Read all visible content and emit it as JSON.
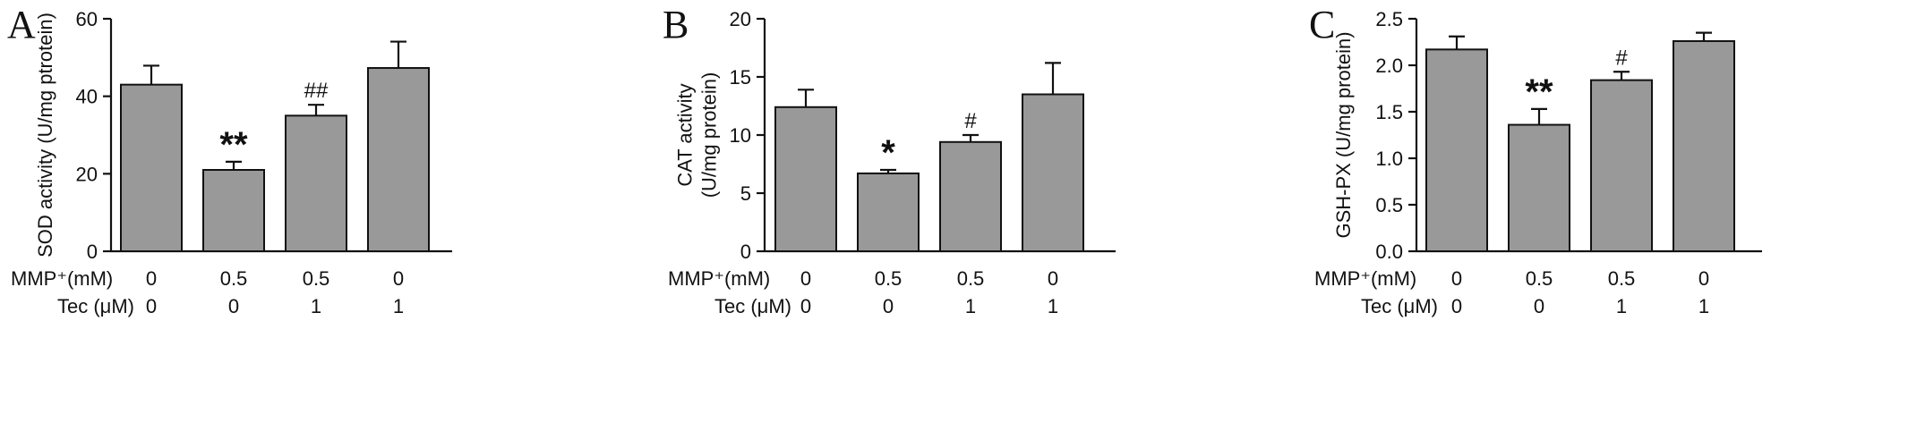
{
  "bar_color": "#999999",
  "conditions": {
    "row_labels": [
      "MMP⁺(mM)",
      "Tec (μM)"
    ],
    "mmp": [
      "0",
      "0.5",
      "0.5",
      "0"
    ],
    "tec": [
      "0",
      "0",
      "1",
      "1"
    ]
  },
  "chart_data": [
    {
      "panel": "A",
      "type": "bar",
      "ylabel_lines": [
        "SOD activity (U/mg ptrotein)"
      ],
      "ylim": [
        0,
        60
      ],
      "yticks": [
        "0",
        "20",
        "40",
        "60"
      ],
      "values": [
        43,
        21,
        35,
        47.3
      ],
      "errors": [
        4.9,
        2.1,
        2.8,
        6.8
      ],
      "significance": [
        "",
        "**",
        "##",
        ""
      ]
    },
    {
      "panel": "B",
      "type": "bar",
      "ylabel_lines": [
        "CAT activity",
        "(U/mg protein)"
      ],
      "ylim": [
        0,
        20
      ],
      "yticks": [
        "0",
        "5",
        "10",
        "15",
        "20"
      ],
      "values": [
        12.4,
        6.7,
        9.4,
        13.5
      ],
      "errors": [
        1.5,
        0.3,
        0.6,
        2.7
      ],
      "significance": [
        "",
        "*",
        "#",
        ""
      ]
    },
    {
      "panel": "C",
      "type": "bar",
      "ylabel_lines": [
        "GSH-PX (U/mg protein)"
      ],
      "ylim": [
        0,
        2.5
      ],
      "yticks": [
        "0.0",
        "0.5",
        "1.0",
        "1.5",
        "2.0",
        "2.5"
      ],
      "values": [
        2.17,
        1.36,
        1.84,
        2.26
      ],
      "errors": [
        0.14,
        0.17,
        0.09,
        0.09
      ],
      "significance": [
        "",
        "**",
        "#",
        ""
      ]
    }
  ]
}
